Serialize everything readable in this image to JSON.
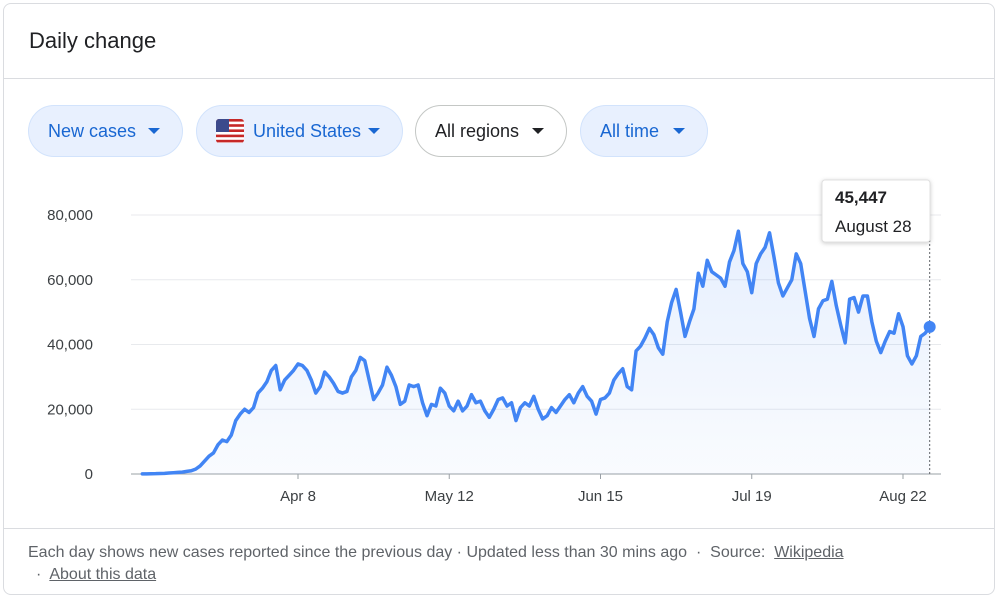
{
  "header": {
    "title": "Daily change"
  },
  "filters": [
    "New cases",
    "United States",
    "All regions",
    "All time"
  ],
  "chart_data": {
    "type": "line",
    "color": "#4285f4",
    "categories": [
      null,
      null,
      null,
      null,
      null,
      null,
      null,
      null,
      null,
      null,
      null,
      null,
      null,
      null,
      null,
      null,
      null,
      null,
      null,
      null,
      null,
      null,
      null,
      null,
      null,
      null,
      null,
      null,
      null,
      null,
      null,
      null,
      null,
      null,
      null,
      "Apr 8",
      null,
      null,
      null,
      null,
      null,
      null,
      null,
      null,
      null,
      null,
      null,
      null,
      null,
      null,
      null,
      null,
      null,
      null,
      null,
      null,
      null,
      null,
      null,
      null,
      null,
      null,
      null,
      null,
      null,
      null,
      null,
      null,
      null,
      "May 12",
      null,
      null,
      null,
      null,
      null,
      null,
      null,
      null,
      null,
      null,
      null,
      null,
      null,
      null,
      null,
      null,
      null,
      null,
      null,
      null,
      null,
      null,
      null,
      null,
      null,
      null,
      null,
      null,
      null,
      null,
      null,
      null,
      null,
      "Jun 15",
      null,
      null,
      null,
      null,
      null,
      null,
      null,
      null,
      null,
      null,
      null,
      null,
      null,
      null,
      null,
      null,
      null,
      null,
      null,
      null,
      null,
      null,
      null,
      null,
      null,
      null,
      null,
      null,
      null,
      null,
      null,
      null,
      null,
      "Jul 19",
      null,
      null,
      null,
      null,
      null,
      null,
      null,
      null,
      null,
      null,
      null,
      null,
      null,
      null,
      null,
      null,
      null,
      null,
      null,
      null,
      null,
      null,
      null,
      null,
      null,
      null,
      null,
      null,
      null,
      null,
      null,
      null,
      null,
      "Aug 22",
      null,
      null,
      null,
      null,
      null,
      null
    ],
    "values": [
      30,
      50,
      80,
      100,
      150,
      200,
      300,
      400,
      500,
      600,
      800,
      1000,
      1500,
      2500,
      4000,
      5500,
      6500,
      9000,
      10500,
      10000,
      12000,
      16500,
      18500,
      20000,
      19000,
      20500,
      25000,
      26500,
      28500,
      32000,
      33500,
      26000,
      29000,
      30500,
      32000,
      34000,
      33500,
      32000,
      29000,
      25000,
      27000,
      31500,
      30000,
      28000,
      25500,
      25000,
      25500,
      30000,
      32000,
      36000,
      35000,
      29000,
      23000,
      25000,
      27500,
      33000,
      30500,
      27000,
      21500,
      22500,
      27500,
      27000,
      27500,
      22000,
      18000,
      21500,
      21000,
      26500,
      25000,
      21000,
      19500,
      22500,
      19500,
      21000,
      24500,
      22000,
      22500,
      19500,
      17500,
      20000,
      23000,
      23500,
      21000,
      22000,
      16500,
      20500,
      22000,
      21000,
      24000,
      20000,
      17000,
      18000,
      20500,
      19000,
      21000,
      23000,
      24500,
      22000,
      25000,
      27000,
      24000,
      22500,
      18500,
      23000,
      23500,
      25000,
      29000,
      31000,
      32500,
      27000,
      26000,
      38000,
      39500,
      42000,
      45000,
      43000,
      39000,
      37000,
      47000,
      53000,
      57000,
      50000,
      42500,
      47000,
      51000,
      62000,
      58000,
      66000,
      62500,
      61500,
      60500,
      58000,
      65500,
      69000,
      75000,
      65000,
      62500,
      56000,
      65000,
      68000,
      70000,
      74500,
      67000,
      59000,
      55000,
      57500,
      60000,
      68000,
      65000,
      56500,
      48000,
      42500,
      51000,
      53500,
      54000,
      59500,
      52000,
      46000,
      40500,
      54000,
      54500,
      50000,
      55000,
      55000,
      47000,
      41000,
      37500,
      41000,
      44000,
      43500,
      49500,
      45500,
      36500,
      34000,
      36500,
      42500,
      43500,
      45447
    ],
    "ylim": [
      0,
      80000
    ],
    "yticks": [
      0,
      {
        "value": 20000,
        "label": "20,000"
      },
      {
        "value": 40000,
        "label": "40,000"
      },
      {
        "value": 60000,
        "label": "60,000"
      },
      {
        "value": 80000,
        "label": "80,000"
      }
    ],
    "grid": true,
    "tooltip": {
      "value_label": "45,447",
      "date": "August 28"
    }
  },
  "footer": {
    "note": "Each day shows new cases reported since the previous day · Updated less than 30 mins ago",
    "separator": "·",
    "source_label": "Source:",
    "source_link": "Wikipedia",
    "about_link": "About this data"
  }
}
